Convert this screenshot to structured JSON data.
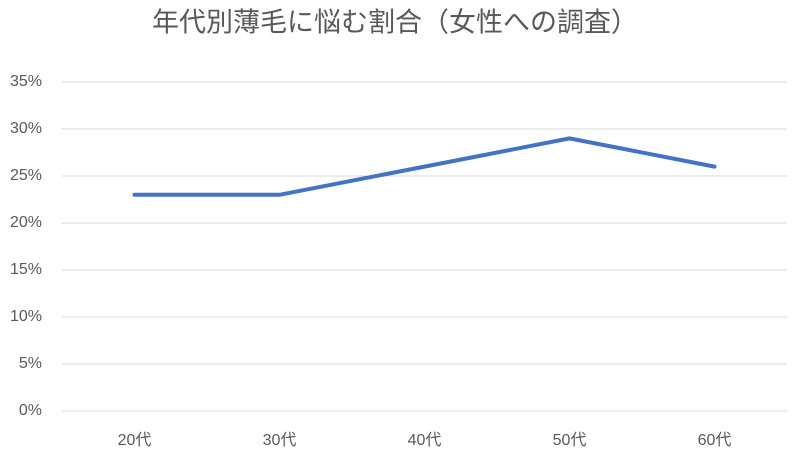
{
  "chart_data": {
    "type": "line",
    "title": "年代別薄毛に悩む割合（女性への調査）",
    "categories": [
      "20代",
      "30代",
      "40代",
      "50代",
      "60代"
    ],
    "series": [
      {
        "color": "#4472c4",
        "values": [
          23,
          23,
          26,
          29,
          26
        ]
      }
    ],
    "ylim": [
      0,
      35
    ],
    "yticks": [
      {
        "value": 0,
        "label": "0%"
      },
      {
        "value": 5,
        "label": "5%"
      },
      {
        "value": 10,
        "label": "10%"
      },
      {
        "value": 15,
        "label": "15%"
      },
      {
        "value": 20,
        "label": "20%"
      },
      {
        "value": 25,
        "label": "25%"
      },
      {
        "value": 30,
        "label": "30%"
      },
      {
        "value": 35,
        "label": "35%"
      }
    ],
    "grid": true
  }
}
